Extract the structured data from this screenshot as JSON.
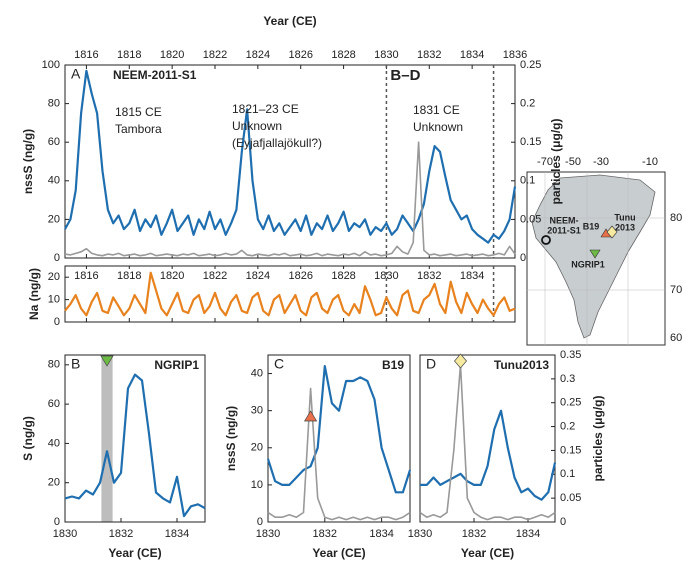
{
  "chart_data": [
    {
      "type": "line",
      "panel_label": "A",
      "title": "NEEM-2011-S1",
      "xlabel": "Year (CE)",
      "ylabel": "nssS (ng/g)",
      "y2label": "particles (μg/g)",
      "span_label": "B–D",
      "span": [
        1830,
        1835
      ],
      "annotations": [
        "1815 CE",
        "Tambora",
        "1821–23 CE",
        "Unknown",
        "(Eyjafjallajökull?)",
        "1831 CE",
        "Unknown"
      ],
      "xlim": [
        1815,
        1836
      ],
      "xticks": [
        1816,
        1818,
        1820,
        1822,
        1824,
        1826,
        1828,
        1830,
        1832,
        1834,
        1836
      ],
      "ylim": [
        0,
        100
      ],
      "yticks": [
        0,
        20,
        40,
        60,
        80,
        100
      ],
      "y2lim": [
        0,
        0.25
      ],
      "y2ticks": [
        0,
        0.05,
        0.1,
        0.15,
        0.2,
        0.25
      ],
      "x": [
        1815,
        1815.25,
        1815.5,
        1815.75,
        1816,
        1816.25,
        1816.5,
        1816.75,
        1817,
        1817.25,
        1817.5,
        1817.75,
        1818,
        1818.25,
        1818.5,
        1818.75,
        1819,
        1819.25,
        1819.5,
        1819.75,
        1820,
        1820.25,
        1820.5,
        1820.75,
        1821,
        1821.25,
        1821.5,
        1821.75,
        1822,
        1822.25,
        1822.5,
        1822.75,
        1823,
        1823.25,
        1823.5,
        1823.75,
        1824,
        1824.25,
        1824.5,
        1824.75,
        1825,
        1825.25,
        1825.5,
        1825.75,
        1826,
        1826.25,
        1826.5,
        1826.75,
        1827,
        1827.25,
        1827.5,
        1827.75,
        1828,
        1828.25,
        1828.5,
        1828.75,
        1829,
        1829.25,
        1829.5,
        1829.75,
        1830,
        1830.25,
        1830.5,
        1830.75,
        1831,
        1831.25,
        1831.5,
        1831.75,
        1832,
        1832.25,
        1832.5,
        1832.75,
        1833,
        1833.25,
        1833.5,
        1833.75,
        1834,
        1834.25,
        1834.5,
        1834.75,
        1835,
        1835.25,
        1835.5,
        1835.75,
        1836
      ],
      "series": [
        {
          "name": "nssS",
          "color": "#1f6fb0",
          "axis": "y",
          "values": [
            15,
            20,
            35,
            75,
            97,
            85,
            75,
            45,
            25,
            18,
            22,
            15,
            18,
            25,
            14,
            20,
            16,
            22,
            12,
            18,
            25,
            14,
            18,
            22,
            12,
            20,
            15,
            24,
            15,
            20,
            12,
            18,
            25,
            55,
            77,
            40,
            20,
            15,
            22,
            14,
            18,
            12,
            16,
            20,
            14,
            22,
            12,
            18,
            15,
            22,
            14,
            18,
            24,
            14,
            18,
            16,
            20,
            12,
            16,
            14,
            18,
            12,
            15,
            22,
            18,
            14,
            20,
            28,
            45,
            58,
            55,
            42,
            30,
            25,
            20,
            22,
            15,
            12,
            10,
            8,
            12,
            10,
            14,
            20,
            37
          ]
        },
        {
          "name": "particles",
          "color": "#999999",
          "axis": "y2",
          "values": [
            0.005,
            0.004,
            0.006,
            0.008,
            0.012,
            0.006,
            0.004,
            0.003,
            0.005,
            0.004,
            0.006,
            0.003,
            0.004,
            0.005,
            0.003,
            0.004,
            0.006,
            0.003,
            0.004,
            0.005,
            0.004,
            0.003,
            0.005,
            0.004,
            0.006,
            0.003,
            0.004,
            0.005,
            0.003,
            0.004,
            0.006,
            0.004,
            0.005,
            0.01,
            0.004,
            0.003,
            0.005,
            0.004,
            0.003,
            0.005,
            0.004,
            0.006,
            0.003,
            0.004,
            0.005,
            0.003,
            0.004,
            0.006,
            0.003,
            0.005,
            0.004,
            0.003,
            0.005,
            0.004,
            0.006,
            0.003,
            0.008,
            0.004,
            0.005,
            0.003,
            0.004,
            0.006,
            0.015,
            0.008,
            0.005,
            0.02,
            0.15,
            0.01,
            0.004,
            0.005,
            0.003,
            0.004,
            0.005,
            0.003,
            0.004,
            0.005,
            0.003,
            0.004,
            0.005,
            0.003,
            0.004,
            0.006,
            0.004,
            0.015,
            0.005
          ]
        }
      ]
    },
    {
      "type": "line",
      "ylabel": "Na (ng/g)",
      "span": [
        1830,
        1835
      ],
      "xlim": [
        1815,
        1836
      ],
      "xticks": [
        1816,
        1818,
        1820,
        1822,
        1824,
        1826,
        1828,
        1830,
        1832,
        1834
      ],
      "ylim": [
        0,
        25
      ],
      "yticks": [
        0,
        10,
        20
      ],
      "x": [
        1815,
        1815.25,
        1815.5,
        1815.75,
        1816,
        1816.25,
        1816.5,
        1816.75,
        1817,
        1817.25,
        1817.5,
        1817.75,
        1818,
        1818.25,
        1818.5,
        1818.75,
        1819,
        1819.25,
        1819.5,
        1819.75,
        1820,
        1820.25,
        1820.5,
        1820.75,
        1821,
        1821.25,
        1821.5,
        1821.75,
        1822,
        1822.25,
        1822.5,
        1822.75,
        1823,
        1823.25,
        1823.5,
        1823.75,
        1824,
        1824.25,
        1824.5,
        1824.75,
        1825,
        1825.25,
        1825.5,
        1825.75,
        1826,
        1826.25,
        1826.5,
        1826.75,
        1827,
        1827.25,
        1827.5,
        1827.75,
        1828,
        1828.25,
        1828.5,
        1828.75,
        1829,
        1829.25,
        1829.5,
        1829.75,
        1830,
        1830.25,
        1830.5,
        1830.75,
        1831,
        1831.25,
        1831.5,
        1831.75,
        1832,
        1832.25,
        1832.5,
        1832.75,
        1833,
        1833.25,
        1833.5,
        1833.75,
        1834,
        1834.25,
        1834.5,
        1834.75,
        1835,
        1835.25,
        1835.5,
        1835.75,
        1836
      ],
      "series": [
        {
          "name": "Na",
          "color": "#e8821e",
          "axis": "y",
          "values": [
            5,
            8,
            12,
            6,
            3,
            9,
            13,
            5,
            4,
            11,
            7,
            3,
            6,
            12,
            8,
            4,
            22,
            14,
            6,
            3,
            8,
            13,
            5,
            4,
            10,
            12,
            4,
            7,
            13,
            6,
            3,
            9,
            12,
            5,
            4,
            11,
            13,
            5,
            3,
            10,
            12,
            4,
            8,
            12,
            5,
            3,
            11,
            13,
            6,
            4,
            10,
            12,
            5,
            3,
            8,
            4,
            16,
            10,
            3,
            4,
            11,
            6,
            3,
            12,
            14,
            5,
            4,
            10,
            12,
            17,
            8,
            4,
            18,
            9,
            4,
            13,
            8,
            4,
            10,
            6,
            3,
            8,
            11,
            5,
            6
          ]
        }
      ]
    },
    {
      "type": "line",
      "panel_label": "B",
      "title": "NGRIP1",
      "xlabel": "Year (CE)",
      "ylabel": "S (ng/g)",
      "highlight": [
        1831.3,
        1831.7
      ],
      "marker": {
        "x": 1831.5,
        "shape": "triangle-down",
        "color": "#6dbb45"
      },
      "xlim": [
        1830,
        1835
      ],
      "xticks": [
        1830,
        1832,
        1834
      ],
      "ylim": [
        0,
        85
      ],
      "yticks": [
        0,
        20,
        40,
        60,
        80
      ],
      "x": [
        1830,
        1830.25,
        1830.5,
        1830.75,
        1831,
        1831.25,
        1831.5,
        1831.75,
        1832,
        1832.25,
        1832.5,
        1832.75,
        1833,
        1833.25,
        1833.5,
        1833.75,
        1834,
        1834.25,
        1834.5,
        1834.75,
        1835
      ],
      "series": [
        {
          "name": "S",
          "color": "#1f6fb0",
          "axis": "y",
          "values": [
            12,
            13,
            12,
            16,
            14,
            20,
            36,
            20,
            25,
            68,
            75,
            72,
            45,
            15,
            12,
            10,
            23,
            3,
            8,
            9,
            7
          ]
        }
      ]
    },
    {
      "type": "line",
      "panel_label": "C",
      "title": "B19",
      "xlabel": "Year (CE)",
      "ylabel": "nssS (ng/g)",
      "marker": {
        "x": 1831.5,
        "shape": "triangle-up",
        "color": "#e8704a"
      },
      "xlim": [
        1830,
        1835
      ],
      "xticks": [
        1830,
        1832,
        1834
      ],
      "ylim": [
        0,
        45
      ],
      "yticks": [
        0,
        10,
        20,
        30,
        40
      ],
      "y2lim": [
        0,
        0.35
      ],
      "x": [
        1830,
        1830.25,
        1830.5,
        1830.75,
        1831,
        1831.25,
        1831.5,
        1831.75,
        1832,
        1832.25,
        1832.5,
        1832.75,
        1833,
        1833.25,
        1833.5,
        1833.75,
        1834,
        1834.25,
        1834.5,
        1834.75,
        1835
      ],
      "series": [
        {
          "name": "nssS",
          "color": "#1f6fb0",
          "axis": "y",
          "values": [
            17,
            11,
            10,
            10,
            12,
            14,
            15,
            20,
            42,
            32,
            30,
            38,
            38,
            39,
            38,
            33,
            20,
            14,
            8,
            8,
            14
          ]
        },
        {
          "name": "particles",
          "color": "#999999",
          "axis": "y2",
          "values": [
            0.02,
            0.01,
            0.01,
            0.015,
            0.01,
            0.02,
            0.28,
            0.05,
            0.01,
            0.005,
            0.01,
            0.005,
            0.01,
            0.005,
            0.01,
            0.005,
            0.01,
            0.01,
            0.005,
            0.01,
            0.02
          ]
        }
      ]
    },
    {
      "type": "line",
      "panel_label": "D",
      "title": "Tunu2013",
      "xlabel": "Year (CE)",
      "y2label": "particles (μg/g)",
      "marker": {
        "x": 1831.5,
        "shape": "diamond",
        "color": "#f5eaa0"
      },
      "xlim": [
        1830,
        1835
      ],
      "xticks": [
        1830,
        1832,
        1834
      ],
      "ylim": [
        0,
        45
      ],
      "y2lim": [
        0,
        0.35
      ],
      "y2ticks": [
        0,
        0.05,
        0.1,
        0.15,
        0.2,
        0.25,
        0.3,
        0.35
      ],
      "x": [
        1830,
        1830.25,
        1830.5,
        1830.75,
        1831,
        1831.25,
        1831.5,
        1831.75,
        1832,
        1832.25,
        1832.5,
        1832.75,
        1833,
        1833.25,
        1833.5,
        1833.75,
        1834,
        1834.25,
        1834.5,
        1834.75,
        1835
      ],
      "series": [
        {
          "name": "nssS",
          "color": "#1f6fb0",
          "axis": "y",
          "values": [
            10,
            10,
            12,
            10,
            11,
            12,
            13,
            11,
            10,
            10,
            15,
            25,
            30,
            20,
            12,
            8,
            9,
            7,
            6,
            8,
            16
          ]
        },
        {
          "name": "particles",
          "color": "#999999",
          "axis": "y2",
          "values": [
            0.02,
            0.01,
            0.015,
            0.01,
            0.02,
            0.15,
            0.33,
            0.05,
            0.02,
            0.01,
            0.005,
            0.01,
            0.01,
            0.005,
            0.01,
            0.01,
            0.005,
            0.01,
            0.015,
            0.01,
            0.02
          ]
        }
      ]
    }
  ],
  "map": {
    "lon_ticks": [
      -70,
      -50,
      -30,
      -10
    ],
    "lat_ticks": [
      80,
      70,
      60
    ],
    "sites": [
      "NEEM-",
      "2011-S1",
      "B19",
      "Tunu",
      "2013",
      "NGRIP1"
    ]
  }
}
